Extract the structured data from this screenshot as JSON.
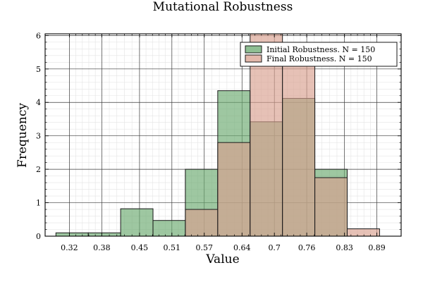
{
  "chart_data": {
    "type": "bar",
    "title": "Mutational Robustness",
    "xlabel": "Value",
    "ylabel": "Frequency",
    "xlim": [
      0.275,
      0.935
    ],
    "ylim": [
      0,
      6.05
    ],
    "x_ticks": [
      0.32,
      0.38,
      0.45,
      0.51,
      0.57,
      0.64,
      0.7,
      0.76,
      0.83,
      0.89
    ],
    "x_tick_labels": [
      "0.32",
      "0.38",
      "0.45",
      "0.51",
      "0.57",
      "0.64",
      "0.7",
      "0.76",
      "0.83",
      "0.89"
    ],
    "y_ticks": [
      0,
      1,
      2,
      3,
      4,
      5,
      6
    ],
    "y_tick_labels": [
      "0",
      "1",
      "2",
      "3",
      "4",
      "5",
      "6"
    ],
    "grid": true,
    "legend_position": "top-right",
    "bin_edges": [
      0.295,
      0.355,
      0.415,
      0.475,
      0.535,
      0.595,
      0.655,
      0.715,
      0.775,
      0.835,
      0.895
    ],
    "series": [
      {
        "name": "Initial Robustness. N = 150",
        "color": "#6aa96f",
        "values": [
          0.1,
          0.1,
          0.82,
          0.47,
          2.0,
          4.35,
          3.42,
          4.12,
          2.0,
          0
        ]
      },
      {
        "name": "Final Robustness. N = 150",
        "color": "#d9a08f",
        "values": [
          0,
          0,
          0,
          0,
          0.8,
          2.8,
          6.05,
          5.25,
          1.75,
          0.22
        ]
      }
    ]
  }
}
